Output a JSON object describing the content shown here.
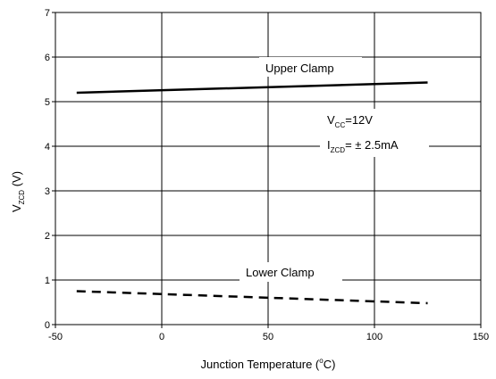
{
  "chart_data": {
    "type": "line",
    "xlabel": "Junction Temperature (°C)",
    "xlabel_parts": {
      "pre": "Junction Temperature (",
      "sup": "o",
      "post": "C)"
    },
    "ylabel_parts": {
      "main": "V",
      "sub": "ZCD",
      "post": " (V)"
    },
    "xlim": [
      -50,
      150
    ],
    "ylim": [
      0,
      7
    ],
    "xticks": [
      -50,
      0,
      50,
      100,
      150
    ],
    "yticks": [
      0,
      1,
      2,
      3,
      4,
      5,
      6,
      7
    ],
    "grid": true,
    "series": [
      {
        "name": "Upper Clamp",
        "style": "solid",
        "x": [
          -40,
          125
        ],
        "y": [
          5.2,
          5.43
        ]
      },
      {
        "name": "Lower Clamp",
        "style": "dashed",
        "x": [
          -40,
          125
        ],
        "y": [
          0.75,
          0.48
        ]
      }
    ],
    "annotations": {
      "vcc": {
        "main": "V",
        "sub": "CC",
        "post": "=12V"
      },
      "izcd": {
        "main": "I",
        "sub": "ZCD",
        "post": "= ± 2.5mA"
      }
    }
  }
}
